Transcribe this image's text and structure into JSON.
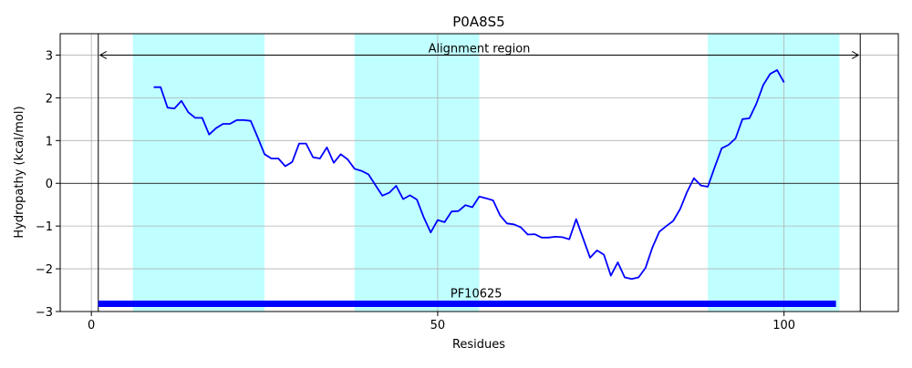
{
  "chart_data": {
    "type": "line",
    "title": "P0A8S5",
    "xlabel": "Residues",
    "ylabel": "Hydropathy (kcal/mol)",
    "xlim": [
      -4.5,
      116.5
    ],
    "ylim": [
      -3,
      3.5
    ],
    "xticks": [
      0,
      50,
      100
    ],
    "yticks": [
      -3,
      -2,
      -1,
      0,
      1,
      2,
      3
    ],
    "grid": true,
    "colors": {
      "line": "#0000ff",
      "highlight": "#bfffff",
      "domain_bar": "#0000ff",
      "grid": "#b0b0b0"
    },
    "highlight_regions": [
      [
        6,
        25
      ],
      [
        38,
        56
      ],
      [
        89,
        108
      ]
    ],
    "alignment_region": {
      "label": "Alignment region",
      "start": 1,
      "end": 111,
      "y": 3
    },
    "vertical_lines": [
      1,
      111
    ],
    "domain_bar": {
      "label": "PF10625",
      "start": 1,
      "end": 107.5,
      "y": -2.82
    },
    "series": [
      {
        "x": [
          9,
          10,
          11,
          12,
          13,
          14,
          15,
          16,
          17,
          18,
          19,
          20,
          21,
          22,
          23,
          24,
          25,
          26,
          27,
          28,
          29,
          30,
          31,
          32,
          33,
          34,
          35,
          36,
          37,
          38,
          39,
          40,
          41,
          42,
          43,
          44,
          45,
          46,
          47,
          48,
          49,
          50,
          51,
          52,
          53,
          54,
          55,
          56,
          57,
          58,
          59,
          60,
          61,
          62,
          63,
          64,
          65,
          66,
          67,
          68,
          69,
          70,
          71,
          72,
          73,
          74,
          75,
          76,
          77,
          78,
          79,
          80,
          81,
          82,
          83,
          84,
          85,
          86,
          87,
          88,
          89,
          90,
          91,
          92,
          93,
          94,
          95,
          96,
          97,
          98,
          99,
          100
        ],
        "y": [
          2.25,
          2.25,
          1.77,
          1.75,
          1.93,
          1.66,
          1.53,
          1.53,
          1.14,
          1.29,
          1.39,
          1.39,
          1.48,
          1.48,
          1.46,
          1.08,
          0.68,
          0.58,
          0.58,
          0.4,
          0.5,
          0.93,
          0.93,
          0.61,
          0.58,
          0.84,
          0.48,
          0.68,
          0.56,
          0.34,
          0.29,
          0.21,
          -0.04,
          -0.29,
          -0.22,
          -0.06,
          -0.37,
          -0.28,
          -0.38,
          -0.8,
          -1.15,
          -0.86,
          -0.91,
          -0.66,
          -0.65,
          -0.51,
          -0.56,
          -0.31,
          -0.35,
          -0.4,
          -0.75,
          -0.94,
          -0.96,
          -1.03,
          -1.2,
          -1.19,
          -1.27,
          -1.27,
          -1.25,
          -1.26,
          -1.31,
          -0.84,
          -1.29,
          -1.74,
          -1.57,
          -1.67,
          -2.16,
          -1.85,
          -2.2,
          -2.24,
          -2.2,
          -1.98,
          -1.5,
          -1.13,
          -1.0,
          -0.88,
          -0.6,
          -0.2,
          0.12,
          -0.05,
          -0.08,
          0.38,
          0.82,
          0.9,
          1.05,
          1.5,
          1.52,
          1.86,
          2.3,
          2.56,
          2.65,
          2.36
        ]
      }
    ]
  }
}
